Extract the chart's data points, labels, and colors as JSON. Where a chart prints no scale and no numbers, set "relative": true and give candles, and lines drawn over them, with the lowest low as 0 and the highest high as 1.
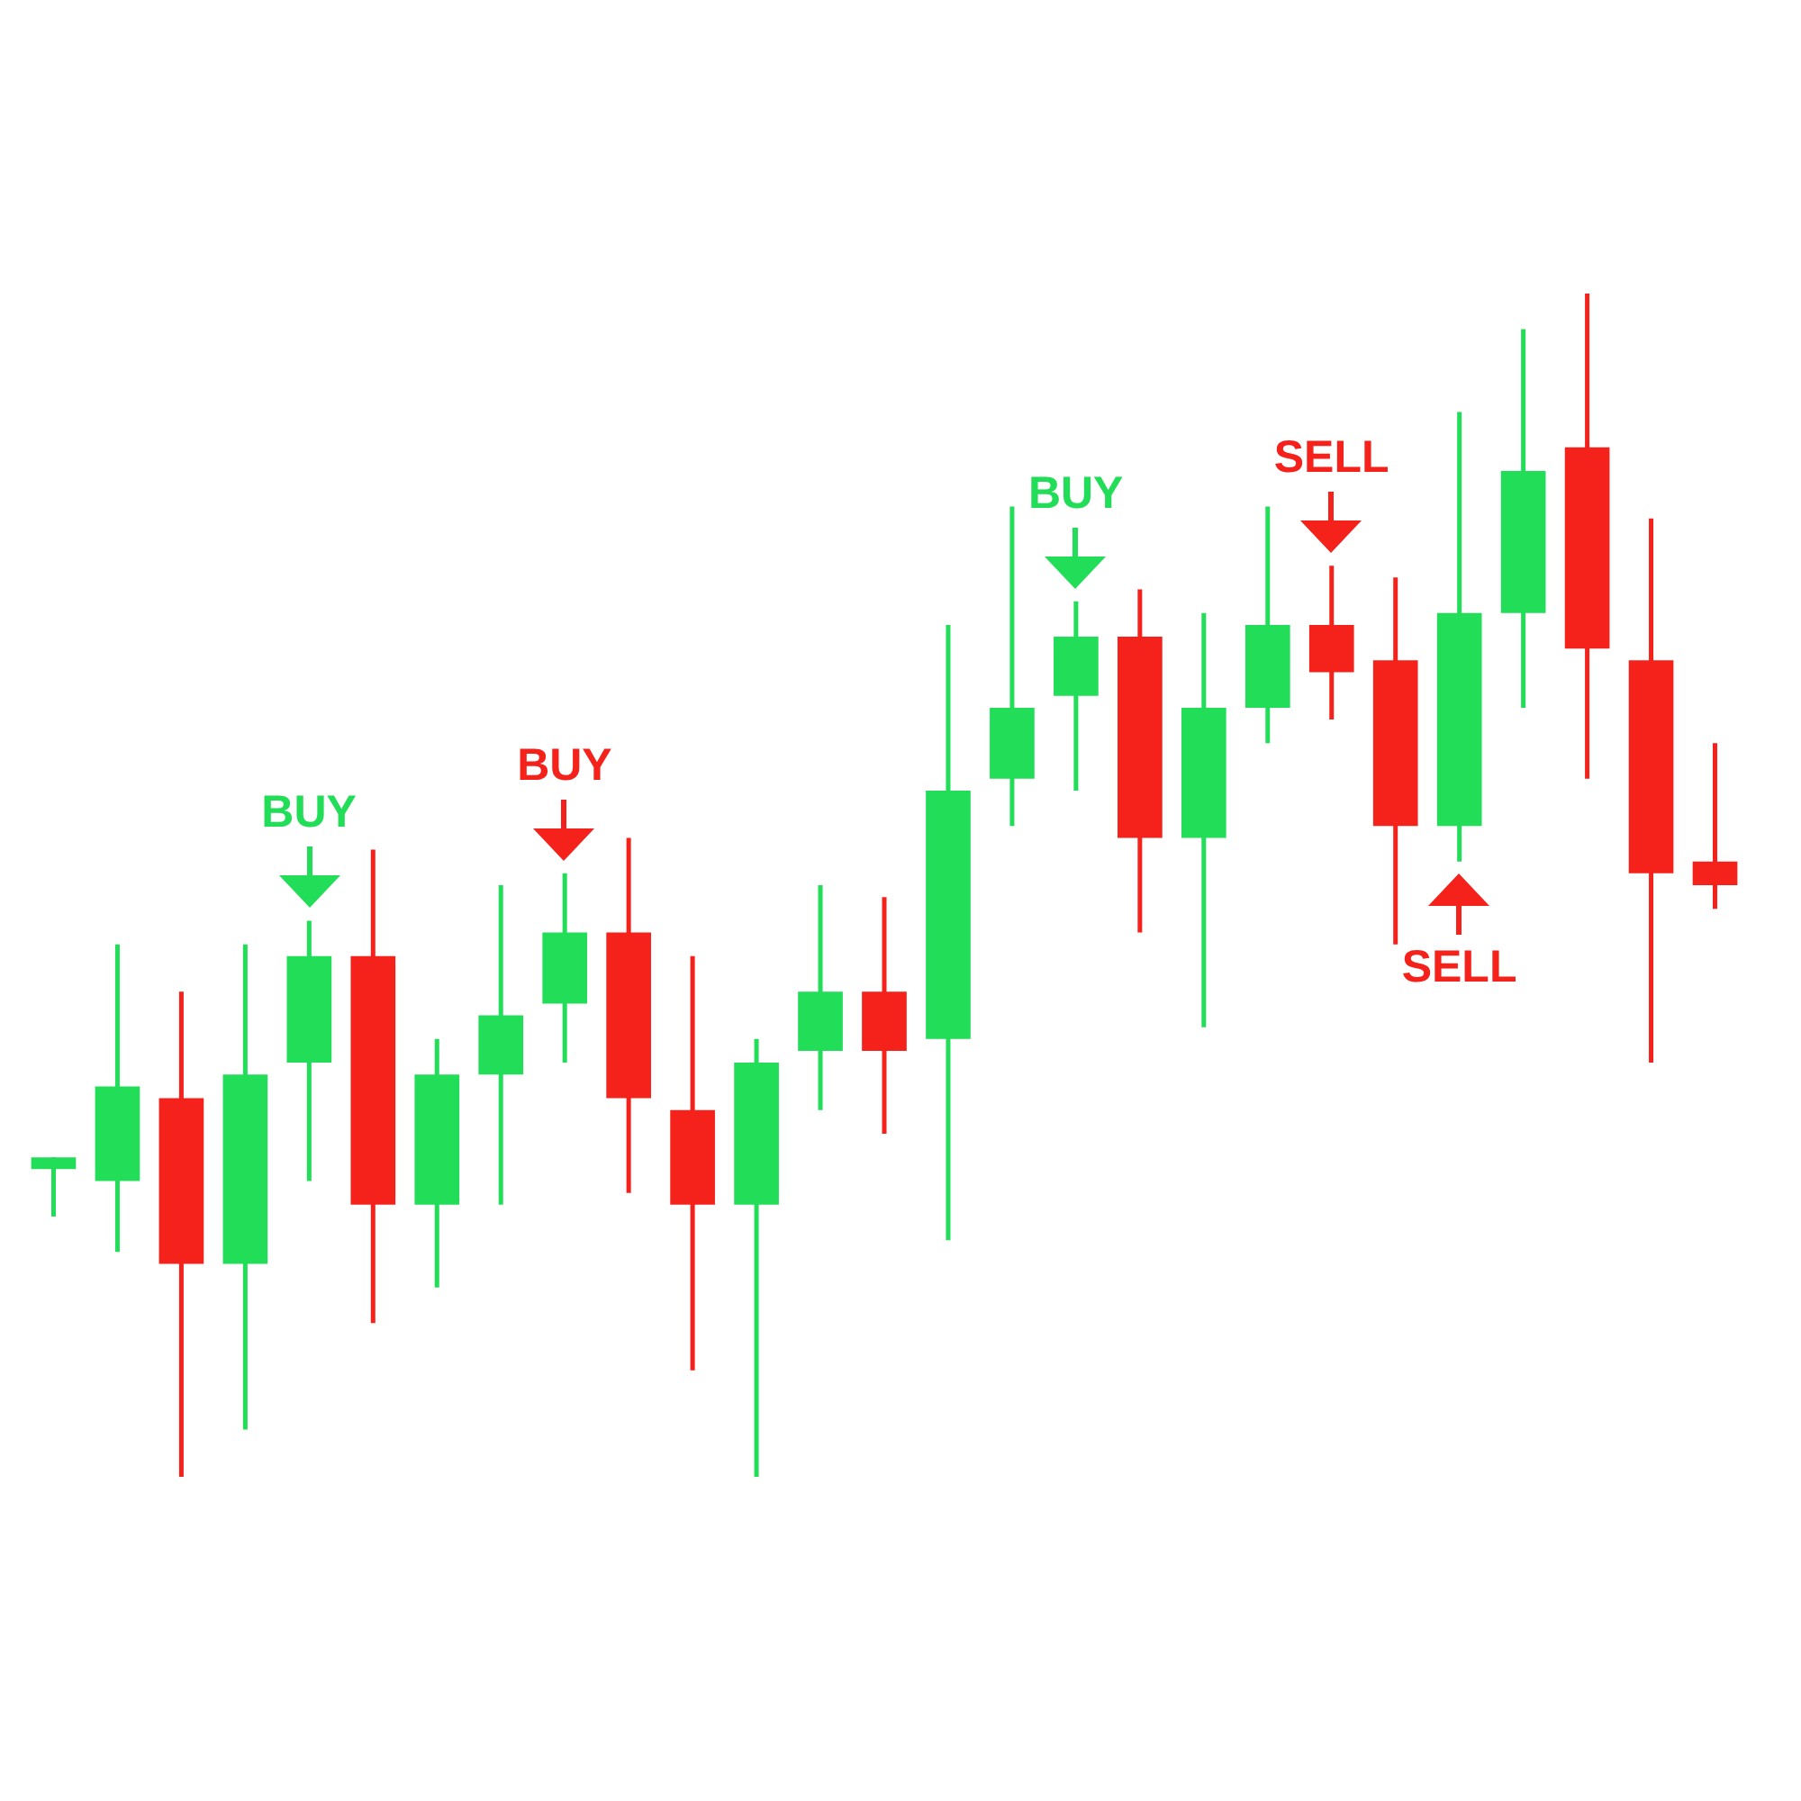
{
  "chart_data": {
    "type": "candlestick",
    "relative": true,
    "categories": [
      null,
      null,
      null,
      null,
      null,
      null,
      null,
      null,
      null,
      null,
      null,
      null,
      null,
      null,
      null,
      null,
      null,
      null,
      null,
      null,
      null,
      null,
      null,
      null,
      null,
      null,
      null
    ],
    "ohlc": [
      [
        0.26,
        0.27,
        0.22,
        0.27
      ],
      [
        0.25,
        0.45,
        0.19,
        0.33
      ],
      [
        0.32,
        0.41,
        0,
        0.18
      ],
      [
        0.18,
        0.45,
        0.04,
        0.34
      ],
      [
        0.35,
        0.47,
        0.25,
        0.44
      ],
      [
        0.44,
        0.53,
        0.13,
        0.23
      ],
      [
        0.23,
        0.37,
        0.16,
        0.34
      ],
      [
        0.34,
        0.5,
        0.23,
        0.39
      ],
      [
        0.4,
        0.51,
        0.35,
        0.46
      ],
      [
        0.46,
        0.54,
        0.24,
        0.32
      ],
      [
        0.31,
        0.44,
        0.09,
        0.23
      ],
      [
        0.23,
        0.37,
        0,
        0.35
      ],
      [
        0.36,
        0.5,
        0.31,
        0.41
      ],
      [
        0.41,
        0.49,
        0.29,
        0.36
      ],
      [
        0.37,
        0.72,
        0.2,
        0.58
      ],
      [
        0.59,
        0.82,
        0.55,
        0.65
      ],
      [
        0.66,
        0.74,
        0.58,
        0.71
      ],
      [
        0.71,
        0.75,
        0.46,
        0.54
      ],
      [
        0.54,
        0.73,
        0.38,
        0.65
      ],
      [
        0.65,
        0.82,
        0.62,
        0.72
      ],
      [
        0.72,
        0.77,
        0.64,
        0.68
      ],
      [
        0.69,
        0.76,
        0.45,
        0.55
      ],
      [
        0.55,
        0.9,
        0.52,
        0.73
      ],
      [
        0.73,
        0.97,
        0.65,
        0.85
      ],
      [
        0.87,
        1,
        0.59,
        0.7
      ],
      [
        0.69,
        0.81,
        0.35,
        0.51
      ],
      [
        0.52,
        0.62,
        0.48,
        0.5
      ]
    ],
    "colors": [
      "#22dd58",
      "#22dd58",
      "#f5211b",
      "#22dd58",
      "#22dd58",
      "#f5211b",
      "#22dd58",
      "#22dd58",
      "#22dd58",
      "#f5211b",
      "#f5211b",
      "#22dd58",
      "#22dd58",
      "#f5211b",
      "#22dd58",
      "#22dd58",
      "#22dd58",
      "#f5211b",
      "#22dd58",
      "#22dd58",
      "#f5211b",
      "#f5211b",
      "#22dd58",
      "#22dd58",
      "#f5211b",
      "#f5211b",
      "#f5211b"
    ],
    "annotations": [
      "BUY",
      "BUY",
      "BUY",
      "SELL",
      "SELL"
    ]
  }
}
